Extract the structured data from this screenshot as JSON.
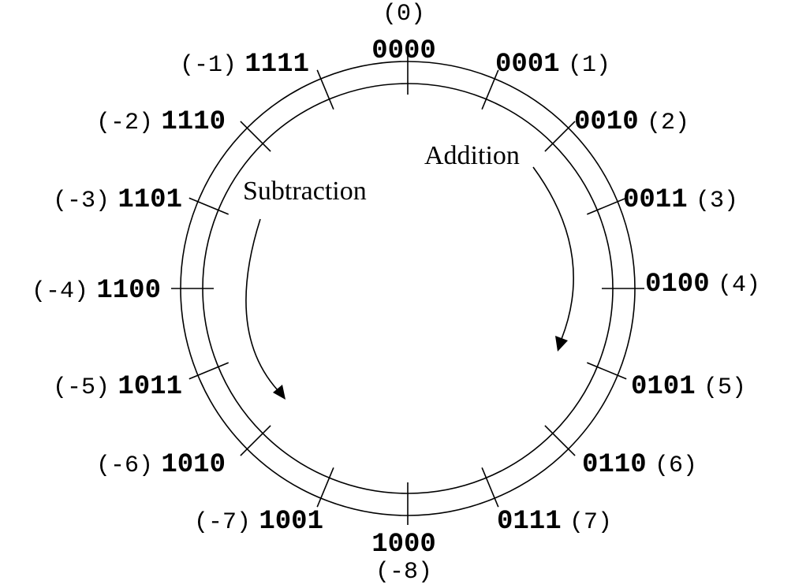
{
  "positions": [
    {
      "binary": "0000",
      "decimal": "(0)"
    },
    {
      "binary": "0001",
      "decimal": "(1)"
    },
    {
      "binary": "0010",
      "decimal": "(2)"
    },
    {
      "binary": "0011",
      "decimal": "(3)"
    },
    {
      "binary": "0100",
      "decimal": "(4)"
    },
    {
      "binary": "0101",
      "decimal": "(5)"
    },
    {
      "binary": "0110",
      "decimal": "(6)"
    },
    {
      "binary": "0111",
      "decimal": "(7)"
    },
    {
      "binary": "1000",
      "decimal": "(-8)"
    },
    {
      "binary": "1001",
      "decimal": "(-7)"
    },
    {
      "binary": "1010",
      "decimal": "(-6)"
    },
    {
      "binary": "1011",
      "decimal": "(-5)"
    },
    {
      "binary": "1100",
      "decimal": "(-4)"
    },
    {
      "binary": "1101",
      "decimal": "(-3)"
    },
    {
      "binary": "1110",
      "decimal": "(-2)"
    },
    {
      "binary": "1111",
      "decimal": "(-1)"
    }
  ],
  "operations": {
    "addition": "Addition",
    "subtraction": "Subtraction"
  }
}
